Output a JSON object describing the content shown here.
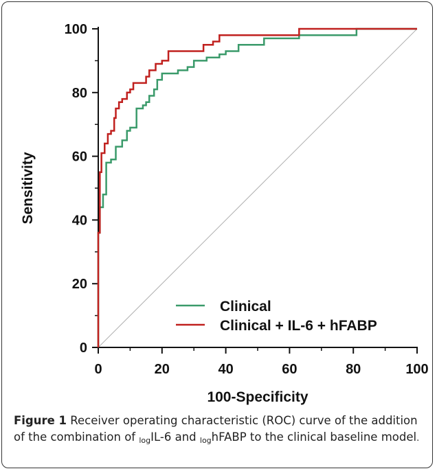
{
  "chart_data": {
    "type": "line",
    "xlabel": "100-Specificity",
    "ylabel": "Sensitivity",
    "xlim": [
      0,
      100
    ],
    "ylim": [
      0,
      100
    ],
    "x_ticks": [
      "0",
      "20",
      "40",
      "60",
      "80",
      "100"
    ],
    "y_ticks": [
      "0",
      "20",
      "40",
      "60",
      "80",
      "100"
    ],
    "grid": false,
    "legend": "bottom-right",
    "reference_line": {
      "x": [
        0,
        100
      ],
      "y": [
        0,
        100
      ],
      "color": "#b0b0b0"
    },
    "series": [
      {
        "name": "Clinical",
        "color": "#3a9a6a",
        "x": [
          0,
          0,
          0.5,
          0.5,
          1.5,
          1.5,
          2.5,
          2.5,
          4,
          4,
          5.5,
          5.5,
          7.5,
          7.5,
          9,
          9,
          10,
          10,
          12,
          12,
          14,
          14,
          15,
          15,
          16,
          16,
          17.5,
          17.5,
          18.5,
          18.5,
          20,
          20,
          22,
          22,
          25,
          25,
          28,
          28,
          30,
          30,
          34,
          34,
          38,
          38,
          40,
          40,
          44,
          44,
          52,
          52,
          63,
          63,
          81,
          81,
          100
        ],
        "y": [
          0,
          36,
          36,
          44,
          44,
          48,
          48,
          58,
          58,
          59,
          59,
          63,
          63,
          65,
          65,
          68,
          68,
          69,
          69,
          75,
          75,
          76,
          76,
          77,
          77,
          79,
          79,
          81,
          81,
          84,
          84,
          86,
          86,
          86,
          86,
          87,
          87,
          88,
          88,
          90,
          90,
          91,
          91,
          92,
          92,
          93,
          93,
          95,
          95,
          97,
          97,
          98,
          98,
          100,
          100
        ]
      },
      {
        "name": "Clinical + IL-6 + hFABP",
        "color": "#c0201e",
        "x": [
          0,
          0,
          0.5,
          0.5,
          1,
          1,
          2,
          2,
          3,
          3,
          4,
          4,
          5,
          5,
          5.5,
          5.5,
          6.5,
          6.5,
          7.5,
          7.5,
          9,
          9,
          10,
          10,
          11,
          11,
          15,
          15,
          16,
          16,
          18,
          18,
          20,
          20,
          22,
          22,
          33,
          33,
          36,
          36,
          38,
          38,
          63,
          63,
          100
        ],
        "y": [
          0,
          36,
          36,
          55,
          55,
          61,
          61,
          64,
          64,
          67,
          67,
          68,
          68,
          72,
          72,
          75,
          75,
          77,
          77,
          78,
          78,
          80,
          80,
          81,
          81,
          83,
          83,
          85,
          85,
          87,
          87,
          89,
          89,
          90,
          90,
          93,
          93,
          95,
          95,
          96,
          96,
          98,
          98,
          100,
          100
        ]
      }
    ]
  },
  "caption": {
    "lead": "Figure 1",
    "text_1": " Receiver operating characteristic (ROC) curve of the addition of the combination of ",
    "sub_1": "log",
    "text_2": "IL-6 and ",
    "sub_2": "log",
    "text_3": "hFABP to the clinical baseline model",
    "end": "."
  }
}
